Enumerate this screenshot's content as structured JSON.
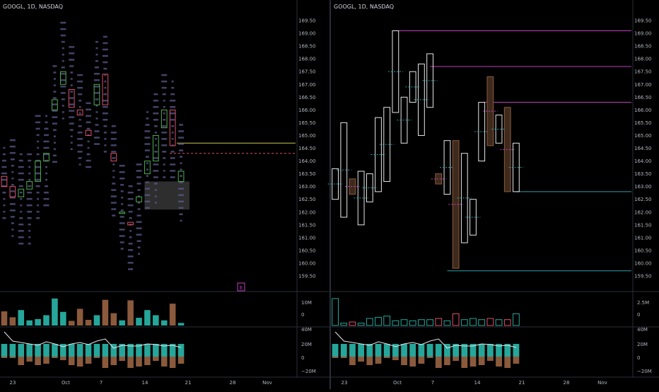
{
  "panes": {
    "left": {
      "symbol": "GOOGL, 1D, NASDAQ",
      "earnings_marker": "E",
      "price_ticks": [
        "169.50",
        "169.00",
        "168.50",
        "168.00",
        "167.50",
        "167.00",
        "166.50",
        "166.00",
        "165.50",
        "165.00",
        "164.50",
        "164.00",
        "163.50",
        "163.00",
        "162.50",
        "162.00",
        "161.50",
        "161.00",
        "160.50",
        "160.00",
        "159.50"
      ],
      "volume_ticks": [
        "10M",
        "0"
      ],
      "osc_ticks": [
        "40M",
        "20M",
        "0",
        "−20M"
      ],
      "date_ticks": [
        "23",
        "Oct",
        "7",
        "14",
        "21",
        "28",
        "Nov"
      ]
    },
    "right": {
      "symbol": "GOOGL, 1D, NASDAQ",
      "price_ticks": [
        "169.50",
        "169.00",
        "168.50",
        "168.00",
        "167.50",
        "167.00",
        "166.50",
        "166.00",
        "165.50",
        "165.00",
        "164.50",
        "164.00",
        "163.50",
        "163.00",
        "162.50",
        "162.00",
        "161.50",
        "161.00",
        "160.50",
        "160.00",
        "159.50"
      ],
      "volume_ticks": [
        "2.5M",
        "0"
      ],
      "osc_ticks": [
        "40M",
        "20M",
        "0",
        "−20M"
      ],
      "date_ticks": [
        "23",
        "Oct",
        "7",
        "14",
        "21",
        "28",
        "Nov"
      ]
    }
  },
  "colors": {
    "background": "#000000",
    "bull": "#26a69a",
    "bear": "#8b5a3c",
    "profile": "#5b5a8c",
    "magenta": "#c03fc0",
    "teal": "#2aa1a9",
    "yellow": "#c8c84a",
    "bear_box": "#e0506a",
    "bull_box": "#4caf50",
    "grid_text": "#b2b5be"
  },
  "chart_data": [
    {
      "type": "candlestick",
      "title": "GOOGL, 1D, NASDAQ",
      "ylim": [
        159.5,
        169.75
      ],
      "x": [
        "Sep 19",
        "Sep 20",
        "Sep 23",
        "Sep 24",
        "Sep 25",
        "Sep 26",
        "Sep 27",
        "Sep 30",
        "Oct 1",
        "Oct 2",
        "Oct 3",
        "Oct 4",
        "Oct 7",
        "Oct 8",
        "Oct 9",
        "Oct 10",
        "Oct 11",
        "Oct 14",
        "Oct 15",
        "Oct 16",
        "Oct 17",
        "Oct 18"
      ],
      "open": [
        163.4,
        163.0,
        162.6,
        162.9,
        163.2,
        164.0,
        166.0,
        167.0,
        166.8,
        166.0,
        165.2,
        166.2,
        167.4,
        164.3,
        162.0,
        161.6,
        162.4,
        163.5,
        164.0,
        165.3,
        166.0,
        163.2
      ],
      "close": [
        163.0,
        162.6,
        162.9,
        163.2,
        164.0,
        164.3,
        166.4,
        167.5,
        166.1,
        165.8,
        165.0,
        167.0,
        166.2,
        164.0,
        162.0,
        161.5,
        162.6,
        164.0,
        165.0,
        166.0,
        164.6,
        163.6
      ],
      "volume": [
        5.5,
        3.2,
        6.0,
        2.0,
        2.5,
        4.0,
        10.5,
        5.3,
        1.8,
        6.5,
        2.2,
        4.0,
        10.0,
        4.8,
        2.0,
        9.8,
        3.0,
        6.0,
        4.0,
        2.0,
        8.5,
        1.0
      ],
      "volume_unit": "M",
      "levels": {
        "yellow_line": 164.7,
        "dashed_line": 164.3,
        "gray_zone": [
          162.1,
          163.2
        ]
      }
    },
    {
      "type": "candlestick",
      "title": "GOOGL, 1D, NASDAQ",
      "ylim": [
        159.5,
        169.75
      ],
      "x": [
        "Sep 19",
        "Sep 20",
        "Sep 23",
        "Sep 24",
        "Sep 25",
        "Sep 26",
        "Sep 27",
        "Sep 30",
        "Oct 1",
        "Oct 2",
        "Oct 3",
        "Oct 4",
        "Oct 7",
        "Oct 8",
        "Oct 9",
        "Oct 10",
        "Oct 11",
        "Oct 14",
        "Oct 15",
        "Oct 16",
        "Oct 17",
        "Oct 18"
      ],
      "open": [
        162.5,
        161.8,
        163.3,
        161.5,
        162.4,
        162.8,
        163.2,
        165.9,
        164.7,
        166.3,
        165.0,
        166.1,
        163.5,
        162.7,
        164.8,
        160.8,
        161.1,
        164.0,
        167.3,
        164.7,
        166.1,
        162.8
      ],
      "close": [
        163.7,
        165.5,
        162.7,
        163.6,
        163.5,
        165.7,
        166.1,
        169.1,
        166.5,
        167.5,
        167.8,
        168.2,
        163.1,
        164.8,
        159.8,
        164.3,
        162.5,
        166.3,
        164.6,
        165.8,
        162.8,
        164.7
      ],
      "volume": [
        2.3,
        0.2,
        0.3,
        0.2,
        0.6,
        0.7,
        0.8,
        0.4,
        0.5,
        0.4,
        0.5,
        0.5,
        0.6,
        0.4,
        1.0,
        0.5,
        0.6,
        0.5,
        0.6,
        0.5,
        0.5,
        1.0
      ],
      "volume_unit": "M",
      "levels": {
        "magenta": [
          169.1,
          167.7,
          166.3
        ],
        "teal": [
          162.8,
          159.7
        ]
      }
    }
  ],
  "oscillator": {
    "values_left": [
      18,
      10,
      -10,
      -5,
      -10,
      -8,
      12,
      -3,
      -10,
      -12,
      -8,
      15,
      -14,
      -10,
      -4,
      -14,
      -12,
      -10,
      -4,
      -12,
      -14,
      -8
    ],
    "values_right": [
      18,
      10,
      -10,
      -5,
      -10,
      -8,
      12,
      -3,
      -10,
      -12,
      -8,
      15,
      -14,
      -10,
      -4,
      -14,
      -12,
      -10,
      -4,
      -12,
      -14,
      -8
    ],
    "line_left": [
      35,
      22,
      20,
      18,
      16,
      21,
      18,
      14,
      18,
      20,
      17,
      22,
      25,
      12,
      16,
      15,
      15,
      18,
      17,
      15,
      16,
      13
    ],
    "line_right": [
      35,
      22,
      20,
      18,
      16,
      21,
      18,
      14,
      18,
      20,
      17,
      22,
      25,
      12,
      16,
      15,
      15,
      18,
      17,
      15,
      16,
      13
    ]
  }
}
